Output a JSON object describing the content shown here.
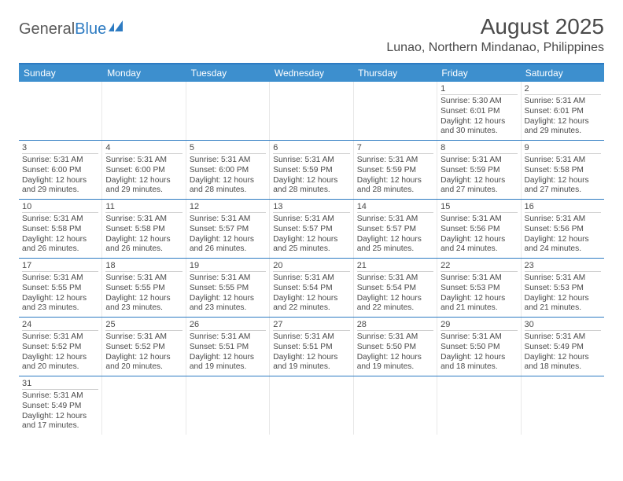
{
  "brand": {
    "part1": "General",
    "part2": "Blue"
  },
  "title": "August 2025",
  "location": "Lunao, Northern Mindanao, Philippines",
  "headerBg": "#3d8fce",
  "borderColor": "#2d7bc2",
  "dayNames": [
    "Sunday",
    "Monday",
    "Tuesday",
    "Wednesday",
    "Thursday",
    "Friday",
    "Saturday"
  ],
  "weeks": [
    [
      null,
      null,
      null,
      null,
      null,
      {
        "d": "1",
        "rise": "5:30 AM",
        "set": "6:01 PM",
        "dl1": "12 hours",
        "dl2": "and 30 minutes."
      },
      {
        "d": "2",
        "rise": "5:31 AM",
        "set": "6:01 PM",
        "dl1": "12 hours",
        "dl2": "and 29 minutes."
      }
    ],
    [
      {
        "d": "3",
        "rise": "5:31 AM",
        "set": "6:00 PM",
        "dl1": "12 hours",
        "dl2": "and 29 minutes."
      },
      {
        "d": "4",
        "rise": "5:31 AM",
        "set": "6:00 PM",
        "dl1": "12 hours",
        "dl2": "and 29 minutes."
      },
      {
        "d": "5",
        "rise": "5:31 AM",
        "set": "6:00 PM",
        "dl1": "12 hours",
        "dl2": "and 28 minutes."
      },
      {
        "d": "6",
        "rise": "5:31 AM",
        "set": "5:59 PM",
        "dl1": "12 hours",
        "dl2": "and 28 minutes."
      },
      {
        "d": "7",
        "rise": "5:31 AM",
        "set": "5:59 PM",
        "dl1": "12 hours",
        "dl2": "and 28 minutes."
      },
      {
        "d": "8",
        "rise": "5:31 AM",
        "set": "5:59 PM",
        "dl1": "12 hours",
        "dl2": "and 27 minutes."
      },
      {
        "d": "9",
        "rise": "5:31 AM",
        "set": "5:58 PM",
        "dl1": "12 hours",
        "dl2": "and 27 minutes."
      }
    ],
    [
      {
        "d": "10",
        "rise": "5:31 AM",
        "set": "5:58 PM",
        "dl1": "12 hours",
        "dl2": "and 26 minutes."
      },
      {
        "d": "11",
        "rise": "5:31 AM",
        "set": "5:58 PM",
        "dl1": "12 hours",
        "dl2": "and 26 minutes."
      },
      {
        "d": "12",
        "rise": "5:31 AM",
        "set": "5:57 PM",
        "dl1": "12 hours",
        "dl2": "and 26 minutes."
      },
      {
        "d": "13",
        "rise": "5:31 AM",
        "set": "5:57 PM",
        "dl1": "12 hours",
        "dl2": "and 25 minutes."
      },
      {
        "d": "14",
        "rise": "5:31 AM",
        "set": "5:57 PM",
        "dl1": "12 hours",
        "dl2": "and 25 minutes."
      },
      {
        "d": "15",
        "rise": "5:31 AM",
        "set": "5:56 PM",
        "dl1": "12 hours",
        "dl2": "and 24 minutes."
      },
      {
        "d": "16",
        "rise": "5:31 AM",
        "set": "5:56 PM",
        "dl1": "12 hours",
        "dl2": "and 24 minutes."
      }
    ],
    [
      {
        "d": "17",
        "rise": "5:31 AM",
        "set": "5:55 PM",
        "dl1": "12 hours",
        "dl2": "and 23 minutes."
      },
      {
        "d": "18",
        "rise": "5:31 AM",
        "set": "5:55 PM",
        "dl1": "12 hours",
        "dl2": "and 23 minutes."
      },
      {
        "d": "19",
        "rise": "5:31 AM",
        "set": "5:55 PM",
        "dl1": "12 hours",
        "dl2": "and 23 minutes."
      },
      {
        "d": "20",
        "rise": "5:31 AM",
        "set": "5:54 PM",
        "dl1": "12 hours",
        "dl2": "and 22 minutes."
      },
      {
        "d": "21",
        "rise": "5:31 AM",
        "set": "5:54 PM",
        "dl1": "12 hours",
        "dl2": "and 22 minutes."
      },
      {
        "d": "22",
        "rise": "5:31 AM",
        "set": "5:53 PM",
        "dl1": "12 hours",
        "dl2": "and 21 minutes."
      },
      {
        "d": "23",
        "rise": "5:31 AM",
        "set": "5:53 PM",
        "dl1": "12 hours",
        "dl2": "and 21 minutes."
      }
    ],
    [
      {
        "d": "24",
        "rise": "5:31 AM",
        "set": "5:52 PM",
        "dl1": "12 hours",
        "dl2": "and 20 minutes."
      },
      {
        "d": "25",
        "rise": "5:31 AM",
        "set": "5:52 PM",
        "dl1": "12 hours",
        "dl2": "and 20 minutes."
      },
      {
        "d": "26",
        "rise": "5:31 AM",
        "set": "5:51 PM",
        "dl1": "12 hours",
        "dl2": "and 19 minutes."
      },
      {
        "d": "27",
        "rise": "5:31 AM",
        "set": "5:51 PM",
        "dl1": "12 hours",
        "dl2": "and 19 minutes."
      },
      {
        "d": "28",
        "rise": "5:31 AM",
        "set": "5:50 PM",
        "dl1": "12 hours",
        "dl2": "and 19 minutes."
      },
      {
        "d": "29",
        "rise": "5:31 AM",
        "set": "5:50 PM",
        "dl1": "12 hours",
        "dl2": "and 18 minutes."
      },
      {
        "d": "30",
        "rise": "5:31 AM",
        "set": "5:49 PM",
        "dl1": "12 hours",
        "dl2": "and 18 minutes."
      }
    ],
    [
      {
        "d": "31",
        "rise": "5:31 AM",
        "set": "5:49 PM",
        "dl1": "12 hours",
        "dl2": "and 17 minutes."
      },
      null,
      null,
      null,
      null,
      null,
      null
    ]
  ],
  "labels": {
    "sunrise": "Sunrise:",
    "sunset": "Sunset:",
    "daylight": "Daylight:"
  }
}
